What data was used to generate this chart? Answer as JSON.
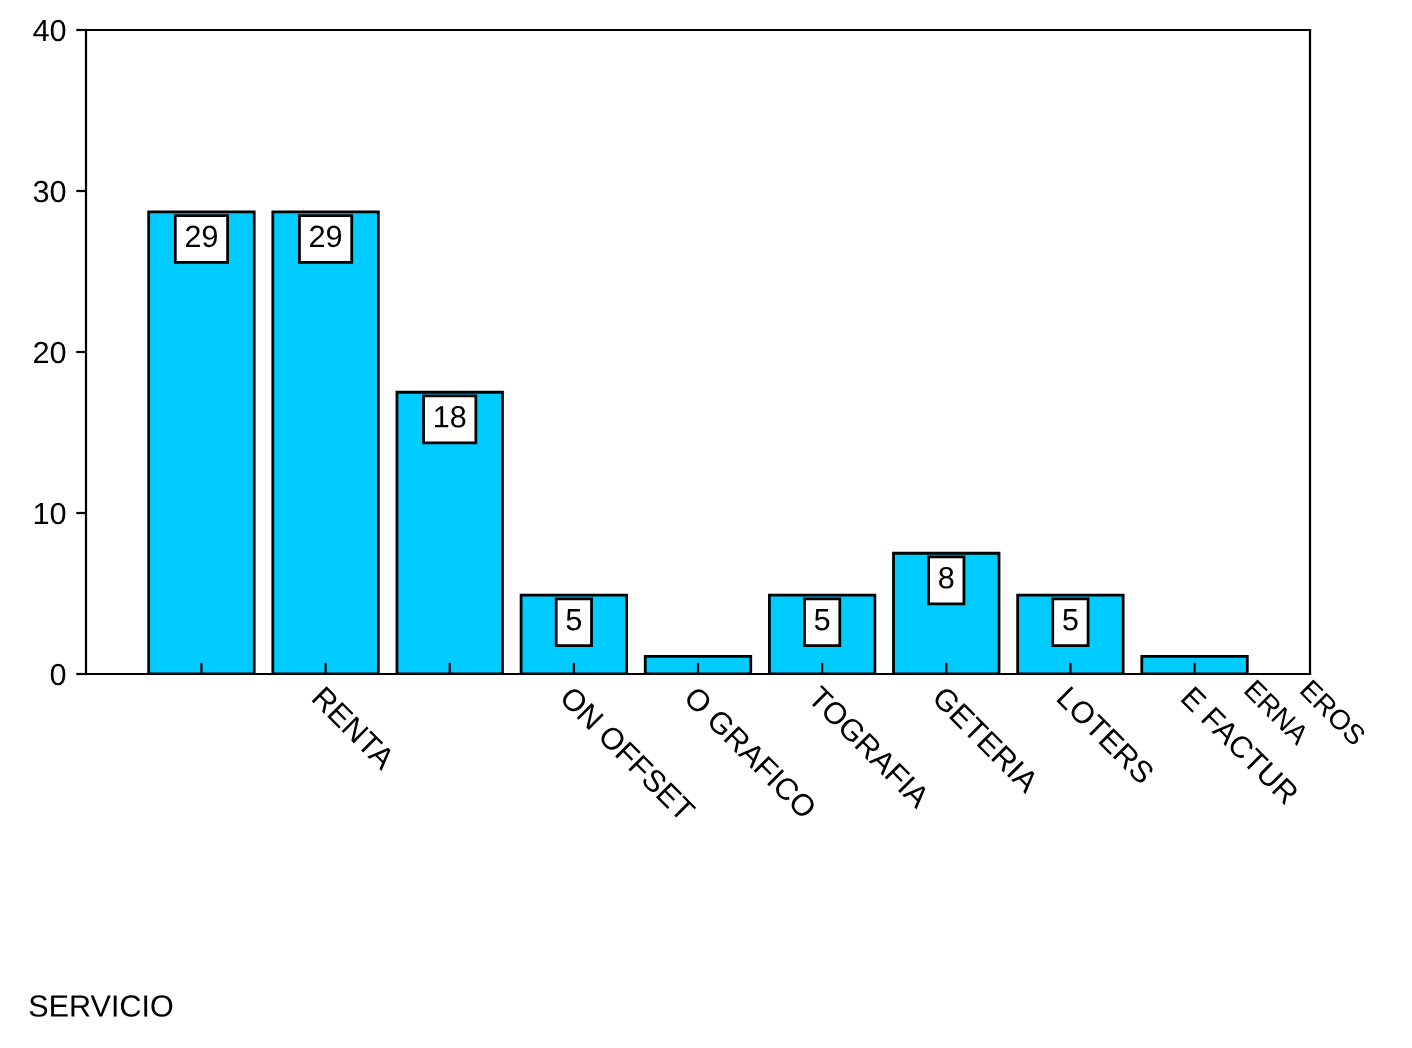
{
  "chart_data": {
    "type": "bar",
    "categories": [
      null,
      "RENTA",
      null,
      "ON OFFSET",
      "O GRAFICO",
      "TOGRAFIA",
      "GETERIA",
      "LOTERS",
      "E FACTUR"
    ],
    "values": [
      28.7,
      28.7,
      17.5,
      4.9,
      1.1,
      4.9,
      7.5,
      4.9,
      1.1
    ],
    "value_labels": [
      "29",
      "29",
      "18",
      "5",
      null,
      "5",
      "8",
      "5",
      null
    ],
    "color": "#00ccff",
    "ylim": [
      0,
      40
    ],
    "yticks": [
      0,
      10,
      20,
      30,
      40
    ],
    "grid": false,
    "legend": false,
    "annotations": [
      "ERNA",
      "EROS",
      "SERVICIO"
    ]
  }
}
